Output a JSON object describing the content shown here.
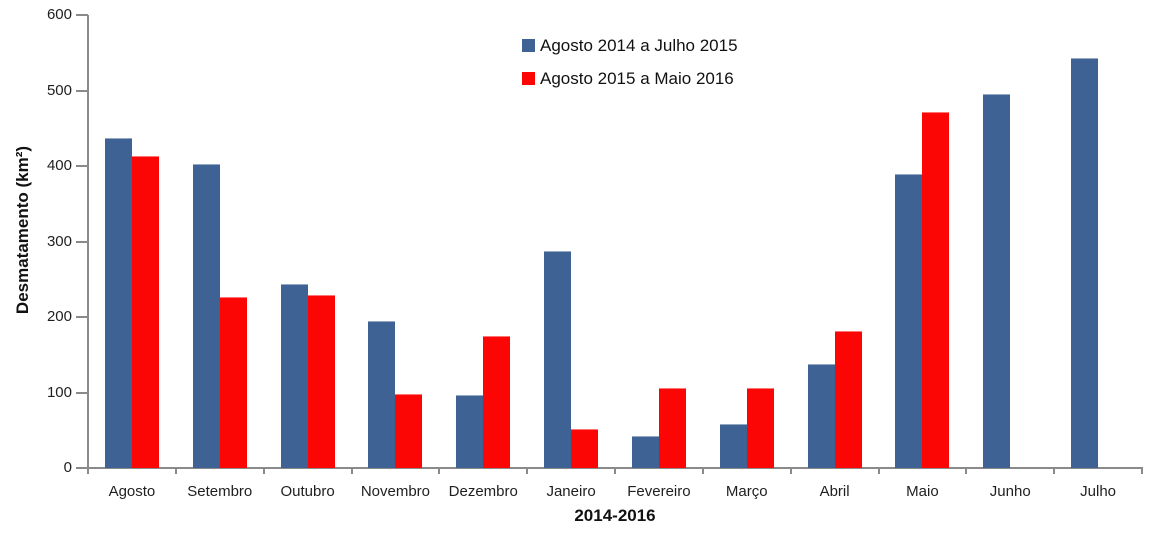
{
  "chart_data": {
    "type": "bar",
    "title": "",
    "categories": [
      "Agosto",
      "Setembro",
      "Outubro",
      "Novembro",
      "Dezembro",
      "Janeiro",
      "Fevereiro",
      "Março",
      "Abril",
      "Maio",
      "Junho",
      "Julho"
    ],
    "series": [
      {
        "name": "Agosto 2014 a Julho 2015",
        "color": "#3E6294",
        "values": [
          437,
          402,
          244,
          195,
          97,
          288,
          42,
          58,
          138,
          389,
          495,
          543
        ]
      },
      {
        "name": "Agosto 2015 a Maio 2016",
        "color": "#FB0505",
        "values": [
          413,
          226,
          229,
          98,
          175,
          52,
          106,
          106,
          182,
          472,
          null,
          null
        ]
      }
    ],
    "xlabel": "2014-2016",
    "ylabel": "Desmatamento (km²)",
    "ylim": [
      0,
      600
    ],
    "yticks": [
      0,
      100,
      200,
      300,
      400,
      500,
      600
    ],
    "legend_position": "top-center",
    "grid": false
  },
  "colors": {
    "axis": "#8a8a8a",
    "tick_text": "#1f1f1f",
    "title_text": "#111111",
    "background": "#ffffff"
  }
}
